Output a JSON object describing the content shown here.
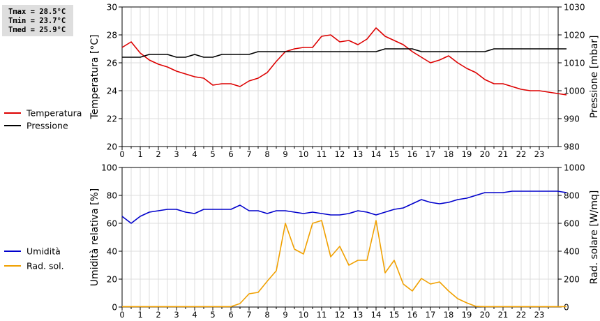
{
  "stats": {
    "tmax": "Tmax = 28.5°C",
    "tmin": "Tmin = 23.7°C",
    "tmed": "Tmed = 25.9°C"
  },
  "chart_data": [
    {
      "type": "line",
      "ylabel": "Temperatura [°C]",
      "y2label": "Pressione [mbar]",
      "xlim": [
        0,
        24
      ],
      "xticks": [
        "0",
        "1",
        "2",
        "3",
        "4",
        "5",
        "6",
        "7",
        "8",
        "9",
        "10",
        "11",
        "12",
        "13",
        "14",
        "15",
        "16",
        "17",
        "18",
        "19",
        "20",
        "21",
        "22",
        "23"
      ],
      "ylim": [
        20,
        30
      ],
      "yticks": [
        "20",
        "22",
        "24",
        "26",
        "28",
        "30"
      ],
      "y2lim": [
        980,
        1030
      ],
      "y2ticks": [
        "980",
        "990",
        "1000",
        "1010",
        "1020",
        "1030"
      ],
      "grid": true,
      "legend_position": "left",
      "series": [
        {
          "name": "Temperatura",
          "axis": "left",
          "color": "#dd0000",
          "points": [
            [
              0,
              27.1
            ],
            [
              0.5,
              27.5
            ],
            [
              1,
              26.7
            ],
            [
              1.5,
              26.2
            ],
            [
              2,
              25.9
            ],
            [
              2.5,
              25.7
            ],
            [
              3,
              25.4
            ],
            [
              3.5,
              25.2
            ],
            [
              4,
              25.0
            ],
            [
              4.5,
              24.9
            ],
            [
              5,
              24.4
            ],
            [
              5.5,
              24.5
            ],
            [
              6,
              24.5
            ],
            [
              6.5,
              24.3
            ],
            [
              7,
              24.7
            ],
            [
              7.5,
              24.9
            ],
            [
              8,
              25.3
            ],
            [
              8.5,
              26.1
            ],
            [
              9,
              26.8
            ],
            [
              9.5,
              27.0
            ],
            [
              10,
              27.1
            ],
            [
              10.5,
              27.1
            ],
            [
              11,
              27.9
            ],
            [
              11.5,
              28.0
            ],
            [
              12,
              27.5
            ],
            [
              12.5,
              27.6
            ],
            [
              13,
              27.3
            ],
            [
              13.5,
              27.7
            ],
            [
              14,
              28.5
            ],
            [
              14.5,
              27.9
            ],
            [
              15,
              27.6
            ],
            [
              15.5,
              27.3
            ],
            [
              16,
              26.8
            ],
            [
              16.5,
              26.4
            ],
            [
              17,
              26.0
            ],
            [
              17.5,
              26.2
            ],
            [
              18,
              26.5
            ],
            [
              18.5,
              26.0
            ],
            [
              19,
              25.6
            ],
            [
              19.5,
              25.3
            ],
            [
              20,
              24.8
            ],
            [
              20.5,
              24.5
            ],
            [
              21,
              24.5
            ],
            [
              21.5,
              24.3
            ],
            [
              22,
              24.1
            ],
            [
              22.5,
              24.0
            ],
            [
              23,
              24.0
            ],
            [
              23.5,
              23.9
            ],
            [
              24,
              23.8
            ],
            [
              24.5,
              23.7
            ]
          ]
        },
        {
          "name": "Pressione",
          "axis": "right",
          "color": "#000000",
          "points": [
            [
              0,
              1012
            ],
            [
              1,
              1012
            ],
            [
              1.5,
              1013
            ],
            [
              2.5,
              1013
            ],
            [
              3,
              1012
            ],
            [
              3.5,
              1012
            ],
            [
              4,
              1013
            ],
            [
              4.5,
              1012
            ],
            [
              5,
              1012
            ],
            [
              5.5,
              1013
            ],
            [
              7,
              1013
            ],
            [
              7.5,
              1014
            ],
            [
              14,
              1014
            ],
            [
              14.5,
              1015
            ],
            [
              16,
              1015
            ],
            [
              16.5,
              1014
            ],
            [
              20,
              1014
            ],
            [
              20.5,
              1015
            ],
            [
              24.5,
              1015
            ]
          ]
        }
      ]
    },
    {
      "type": "line",
      "ylabel": "Umidità relativa [%]",
      "y2label": "Rad. solare [W/mq]",
      "xlim": [
        0,
        24
      ],
      "xticks": [
        "0",
        "1",
        "2",
        "3",
        "4",
        "5",
        "6",
        "7",
        "8",
        "9",
        "10",
        "11",
        "12",
        "13",
        "14",
        "15",
        "16",
        "17",
        "18",
        "19",
        "20",
        "21",
        "22",
        "23"
      ],
      "ylim": [
        0,
        100
      ],
      "yticks": [
        "0",
        "20",
        "40",
        "60",
        "80",
        "100"
      ],
      "y2lim": [
        0,
        1000
      ],
      "y2ticks": [
        "0",
        "200",
        "400",
        "600",
        "800",
        "1000"
      ],
      "grid": true,
      "legend_position": "left",
      "series": [
        {
          "name": "Umidità",
          "axis": "left",
          "color": "#0000cc",
          "points": [
            [
              0,
              65
            ],
            [
              0.5,
              60
            ],
            [
              1,
              65
            ],
            [
              1.5,
              68
            ],
            [
              2,
              69
            ],
            [
              2.5,
              70
            ],
            [
              3,
              70
            ],
            [
              3.5,
              68
            ],
            [
              4,
              67
            ],
            [
              4.5,
              70
            ],
            [
              5,
              70
            ],
            [
              5.5,
              70
            ],
            [
              6,
              70
            ],
            [
              6.5,
              73
            ],
            [
              7,
              69
            ],
            [
              7.5,
              69
            ],
            [
              8,
              67
            ],
            [
              8.5,
              69
            ],
            [
              9,
              69
            ],
            [
              9.5,
              68
            ],
            [
              10,
              67
            ],
            [
              10.5,
              68
            ],
            [
              11,
              67
            ],
            [
              11.5,
              66
            ],
            [
              12,
              66
            ],
            [
              12.5,
              67
            ],
            [
              13,
              69
            ],
            [
              13.5,
              68
            ],
            [
              14,
              66
            ],
            [
              14.5,
              68
            ],
            [
              15,
              70
            ],
            [
              15.5,
              71
            ],
            [
              16,
              74
            ],
            [
              16.5,
              77
            ],
            [
              17,
              75
            ],
            [
              17.5,
              74
            ],
            [
              18,
              75
            ],
            [
              18.5,
              77
            ],
            [
              19,
              78
            ],
            [
              19.5,
              80
            ],
            [
              20,
              82
            ],
            [
              20.5,
              82
            ],
            [
              21,
              82
            ],
            [
              21.5,
              83
            ],
            [
              22,
              83
            ],
            [
              22.5,
              83
            ],
            [
              23,
              83
            ],
            [
              23.5,
              83
            ],
            [
              24,
              83
            ],
            [
              24.5,
              82
            ]
          ]
        },
        {
          "name": "Rad. sol.",
          "axis": "right",
          "color": "#f0a000",
          "points": [
            [
              0,
              3
            ],
            [
              1,
              3
            ],
            [
              2,
              3
            ],
            [
              3,
              3
            ],
            [
              4,
              3
            ],
            [
              5,
              3
            ],
            [
              6,
              3
            ],
            [
              6.5,
              25
            ],
            [
              7,
              95
            ],
            [
              7.5,
              105
            ],
            [
              8,
              185
            ],
            [
              8.5,
              260
            ],
            [
              9,
              600
            ],
            [
              9.5,
              415
            ],
            [
              10,
              380
            ],
            [
              10.5,
              600
            ],
            [
              11,
              620
            ],
            [
              11.5,
              360
            ],
            [
              12,
              435
            ],
            [
              12.5,
              300
            ],
            [
              13,
              335
            ],
            [
              13.5,
              335
            ],
            [
              14,
              620
            ],
            [
              14.5,
              245
            ],
            [
              15,
              335
            ],
            [
              15.5,
              165
            ],
            [
              16,
              115
            ],
            [
              16.5,
              205
            ],
            [
              17,
              165
            ],
            [
              17.5,
              180
            ],
            [
              18,
              115
            ],
            [
              18.5,
              60
            ],
            [
              19,
              30
            ],
            [
              19.5,
              5
            ],
            [
              20,
              3
            ],
            [
              21,
              3
            ],
            [
              22,
              3
            ],
            [
              23,
              3
            ],
            [
              24,
              3
            ],
            [
              24.5,
              3
            ]
          ]
        }
      ]
    }
  ]
}
